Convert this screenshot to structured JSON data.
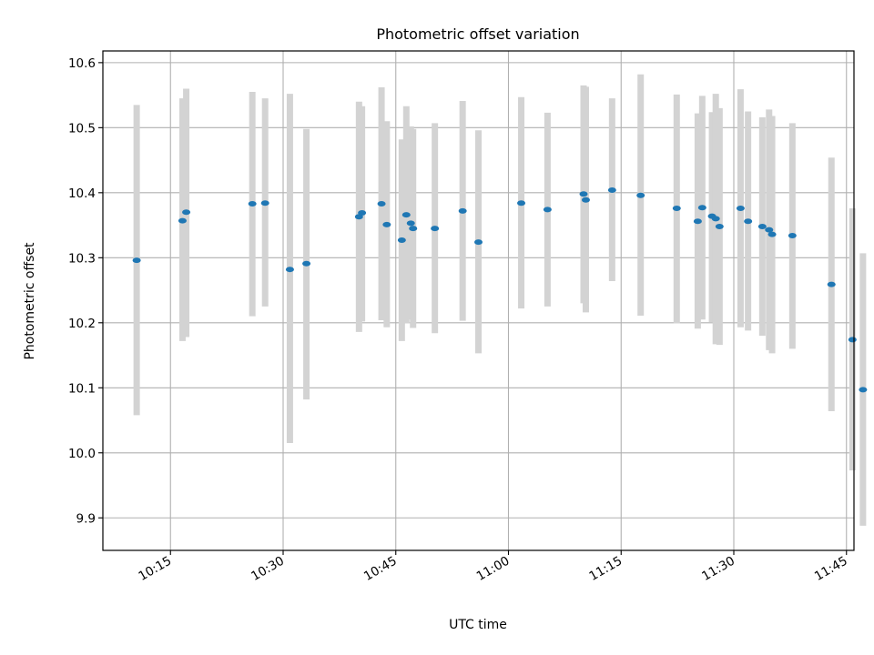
{
  "chart_data": {
    "type": "scatter",
    "title": "Photometric offset variation",
    "xlabel": "UTC time",
    "ylabel": "Photometric offset",
    "xlim": [
      "10:06:00",
      "11:46:00"
    ],
    "ylim": [
      9.85,
      10.618
    ],
    "grid": true,
    "x_ticks": [
      "10:15",
      "10:30",
      "10:45",
      "11:00",
      "11:15",
      "11:30",
      "11:45"
    ],
    "y_ticks": [
      "9.9",
      "10.0",
      "10.1",
      "10.2",
      "10.3",
      "10.4",
      "10.5",
      "10.6"
    ],
    "errorbar_color": "#d3d3d3",
    "marker_color": "#1f77b4",
    "series": [
      {
        "points": [
          {
            "t": "10:10:30",
            "y": 10.296,
            "lo": 10.058,
            "hi": 10.535
          },
          {
            "t": "10:16:36",
            "y": 10.357,
            "lo": 10.172,
            "hi": 10.545
          },
          {
            "t": "10:17:06",
            "y": 10.37,
            "lo": 10.178,
            "hi": 10.56
          },
          {
            "t": "10:25:54",
            "y": 10.383,
            "lo": 10.21,
            "hi": 10.555
          },
          {
            "t": "10:27:36",
            "y": 10.384,
            "lo": 10.225,
            "hi": 10.545
          },
          {
            "t": "10:30:54",
            "y": 10.282,
            "lo": 10.015,
            "hi": 10.552
          },
          {
            "t": "10:33:06",
            "y": 10.291,
            "lo": 10.082,
            "hi": 10.498
          },
          {
            "t": "10:40:06",
            "y": 10.363,
            "lo": 10.186,
            "hi": 10.54
          },
          {
            "t": "10:40:30",
            "y": 10.369,
            "lo": 10.202,
            "hi": 10.533
          },
          {
            "t": "10:43:06",
            "y": 10.383,
            "lo": 10.204,
            "hi": 10.562
          },
          {
            "t": "10:43:48",
            "y": 10.351,
            "lo": 10.193,
            "hi": 10.51
          },
          {
            "t": "10:45:48",
            "y": 10.327,
            "lo": 10.172,
            "hi": 10.482
          },
          {
            "t": "10:46:24",
            "y": 10.366,
            "lo": 10.199,
            "hi": 10.533
          },
          {
            "t": "10:47:00",
            "y": 10.353,
            "lo": 10.205,
            "hi": 10.502
          },
          {
            "t": "10:47:18",
            "y": 10.345,
            "lo": 10.192,
            "hi": 10.498
          },
          {
            "t": "10:50:12",
            "y": 10.345,
            "lo": 10.184,
            "hi": 10.507
          },
          {
            "t": "10:53:54",
            "y": 10.372,
            "lo": 10.203,
            "hi": 10.541
          },
          {
            "t": "10:56:00",
            "y": 10.324,
            "lo": 10.153,
            "hi": 10.496
          },
          {
            "t": "11:01:42",
            "y": 10.384,
            "lo": 10.222,
            "hi": 10.547
          },
          {
            "t": "11:05:12",
            "y": 10.374,
            "lo": 10.225,
            "hi": 10.523
          },
          {
            "t": "11:10:00",
            "y": 10.398,
            "lo": 10.23,
            "hi": 10.565
          },
          {
            "t": "11:10:18",
            "y": 10.389,
            "lo": 10.216,
            "hi": 10.563
          },
          {
            "t": "11:13:48",
            "y": 10.404,
            "lo": 10.264,
            "hi": 10.545
          },
          {
            "t": "11:17:36",
            "y": 10.396,
            "lo": 10.211,
            "hi": 10.582
          },
          {
            "t": "11:22:24",
            "y": 10.376,
            "lo": 10.199,
            "hi": 10.551
          },
          {
            "t": "11:25:12",
            "y": 10.356,
            "lo": 10.191,
            "hi": 10.522
          },
          {
            "t": "11:25:48",
            "y": 10.377,
            "lo": 10.205,
            "hi": 10.549
          },
          {
            "t": "11:27:06",
            "y": 10.364,
            "lo": 10.201,
            "hi": 10.524
          },
          {
            "t": "11:27:36",
            "y": 10.36,
            "lo": 10.167,
            "hi": 10.552
          },
          {
            "t": "11:28:06",
            "y": 10.348,
            "lo": 10.166,
            "hi": 10.53
          },
          {
            "t": "11:30:54",
            "y": 10.376,
            "lo": 10.193,
            "hi": 10.559
          },
          {
            "t": "11:31:54",
            "y": 10.356,
            "lo": 10.188,
            "hi": 10.525
          },
          {
            "t": "11:33:48",
            "y": 10.348,
            "lo": 10.18,
            "hi": 10.516
          },
          {
            "t": "11:34:42",
            "y": 10.343,
            "lo": 10.158,
            "hi": 10.528
          },
          {
            "t": "11:35:06",
            "y": 10.336,
            "lo": 10.153,
            "hi": 10.518
          },
          {
            "t": "11:37:48",
            "y": 10.334,
            "lo": 10.16,
            "hi": 10.507
          },
          {
            "t": "11:43:00",
            "y": 10.259,
            "lo": 10.064,
            "hi": 10.454
          },
          {
            "t": "11:45:48",
            "y": 10.174,
            "lo": 9.973,
            "hi": 10.376
          },
          {
            "t": "11:47:12",
            "y": 10.097,
            "lo": 9.888,
            "hi": 10.307
          }
        ]
      }
    ]
  }
}
